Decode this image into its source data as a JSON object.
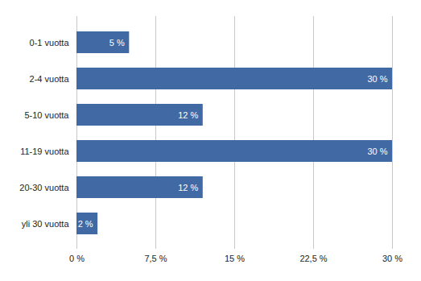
{
  "chart_data": {
    "type": "bar",
    "orientation": "horizontal",
    "categories": [
      "0-1 vuotta",
      "2-4 vuotta",
      "5-10 vuotta",
      "11-19 vuotta",
      "20-30 vuotta",
      "yli 30 vuotta"
    ],
    "values": [
      5,
      30,
      12,
      30,
      12,
      2
    ],
    "value_labels": [
      "5 %",
      "30 %",
      "12 %",
      "30 %",
      "12 %",
      "2 %"
    ],
    "color": "#4169a4",
    "xlim": [
      0,
      30
    ],
    "xticks": [
      {
        "value": 0,
        "label": "0 %"
      },
      {
        "value": 7.5,
        "label": "7,5 %"
      },
      {
        "value": 15,
        "label": "15 %"
      },
      {
        "value": 22.5,
        "label": "22,5 %"
      },
      {
        "value": 30,
        "label": "30 %"
      }
    ],
    "grid": true,
    "data_labels": true
  }
}
